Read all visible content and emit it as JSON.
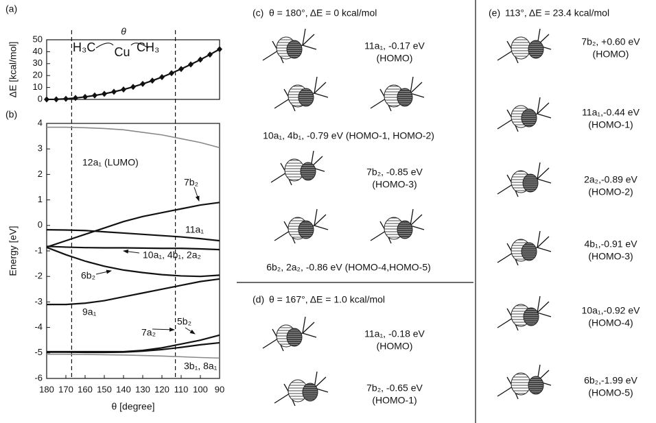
{
  "chart_data": [
    {
      "type": "line",
      "panel": "(a)",
      "ylabel": "ΔE [kcal/mol]",
      "x": [
        180,
        175,
        170,
        165,
        160,
        155,
        150,
        145,
        140,
        135,
        130,
        125,
        120,
        115,
        110,
        105,
        100,
        95,
        90
      ],
      "series": [
        {
          "color": "#111111",
          "marker": "diamond",
          "values": [
            0,
            0.1,
            0.5,
            1.2,
            2.1,
            3.3,
            4.7,
            6.4,
            8.3,
            10.5,
            13,
            15.7,
            18.7,
            22,
            25.5,
            29.3,
            33.3,
            37.6,
            42.1
          ]
        }
      ],
      "xlim": [
        180,
        90
      ],
      "ylim": [
        0,
        50
      ],
      "yticks": [
        0,
        10,
        20,
        30,
        40,
        50
      ],
      "annotations": [
        "H₃C",
        "Cu",
        "CH₃",
        "θ"
      ],
      "vlines": [
        167,
        113
      ]
    },
    {
      "type": "line",
      "panel": "(b)",
      "xlabel": "θ [degree]",
      "ylabel": "Energy [eV]",
      "x": [
        180,
        170,
        160,
        150,
        140,
        130,
        120,
        110,
        100,
        90
      ],
      "series": [
        {
          "name": "12a₁ (LUMO)",
          "color": "#888888",
          "values": [
            3.85,
            3.85,
            3.83,
            3.8,
            3.75,
            3.65,
            3.55,
            3.4,
            3.25,
            3.05
          ]
        },
        {
          "name": "7b₂",
          "color": "#111111",
          "values": [
            -0.85,
            -0.6,
            -0.35,
            -0.1,
            0.15,
            0.35,
            0.5,
            0.65,
            0.8,
            0.9
          ]
        },
        {
          "name": "11a₁",
          "color": "#111111",
          "values": [
            -0.17,
            -0.18,
            -0.2,
            -0.25,
            -0.3,
            -0.35,
            -0.4,
            -0.45,
            -0.52,
            -0.6
          ]
        },
        {
          "name": "10a₁, 4b₁, 2a₂",
          "color": "#111111",
          "values": [
            -0.82,
            -0.85,
            -0.87,
            -0.88,
            -0.88,
            -0.89,
            -0.9,
            -0.9,
            -0.92,
            -0.95
          ]
        },
        {
          "name": "6b₂",
          "color": "#111111",
          "values": [
            -0.86,
            -1.15,
            -1.4,
            -1.6,
            -1.75,
            -1.85,
            -1.93,
            -1.98,
            -2.0,
            -1.95
          ]
        },
        {
          "name": "9a₁",
          "color": "#111111",
          "values": [
            -3.1,
            -3.1,
            -3.05,
            -2.95,
            -2.8,
            -2.65,
            -2.5,
            -2.35,
            -2.2,
            -2.1
          ]
        },
        {
          "name": "7a₂",
          "color": "#111111",
          "values": [
            -4.97,
            -4.97,
            -4.98,
            -4.98,
            -4.97,
            -4.93,
            -4.87,
            -4.78,
            -4.68,
            -4.6
          ]
        },
        {
          "name": "5b₂",
          "color": "#111111",
          "values": [
            -4.95,
            -4.95,
            -4.95,
            -4.95,
            -4.95,
            -4.9,
            -4.8,
            -4.65,
            -4.5,
            -4.3
          ]
        },
        {
          "name": "3b₁, 8a₁",
          "color": "#888888",
          "values": [
            -5.05,
            -5.05,
            -5.06,
            -5.07,
            -5.08,
            -5.1,
            -5.12,
            -5.15,
            -5.18,
            -5.2
          ]
        }
      ],
      "xlim": [
        180,
        90
      ],
      "ylim": [
        -6,
        4
      ],
      "xticks": [
        180,
        170,
        160,
        150,
        140,
        130,
        120,
        110,
        100,
        90
      ],
      "yticks": [
        -6,
        -5,
        -4,
        -3,
        -2,
        -1,
        0,
        1,
        2,
        3,
        4
      ]
    }
  ],
  "panels": [
    {
      "label": "(c)",
      "title": "θ = 180°, ΔE = 0 kcal/mol",
      "captions": [
        [
          "11a₁, -0.17 eV",
          "(HOMO)"
        ],
        [
          "10a₁, 4b₁, -0.79 eV (HOMO-1, HOMO-2)"
        ],
        [
          "7b₂, -0.85 eV",
          "(HOMO-3)"
        ],
        [
          "6b₂, 2a₂, -0.86 eV (HOMO-4,HOMO-5)"
        ]
      ]
    },
    {
      "label": "(d)",
      "title": "θ = 167°, ΔE = 1.0 kcal/mol",
      "captions": [
        [
          "11a₁, -0.18 eV",
          "(HOMO)"
        ],
        [
          "7b₂, -0.65 eV",
          "(HOMO-1)"
        ]
      ]
    },
    {
      "label": "(e)",
      "title": "113°, ΔE = 23.4 kcal/mol",
      "captions": [
        [
          "7b₂, +0.60 eV",
          "(HOMO)"
        ],
        [
          "11a₁,-0.44 eV",
          "(HOMO-1)"
        ],
        [
          "2a₂,-0.89 eV",
          "(HOMO-2)"
        ],
        [
          "4b₁,-0.91 eV",
          "(HOMO-3)"
        ],
        [
          "10a₁,-0.92 eV",
          "(HOMO-4)"
        ],
        [
          "6b₂,-1.99 eV",
          "(HOMO-5)"
        ]
      ]
    }
  ]
}
